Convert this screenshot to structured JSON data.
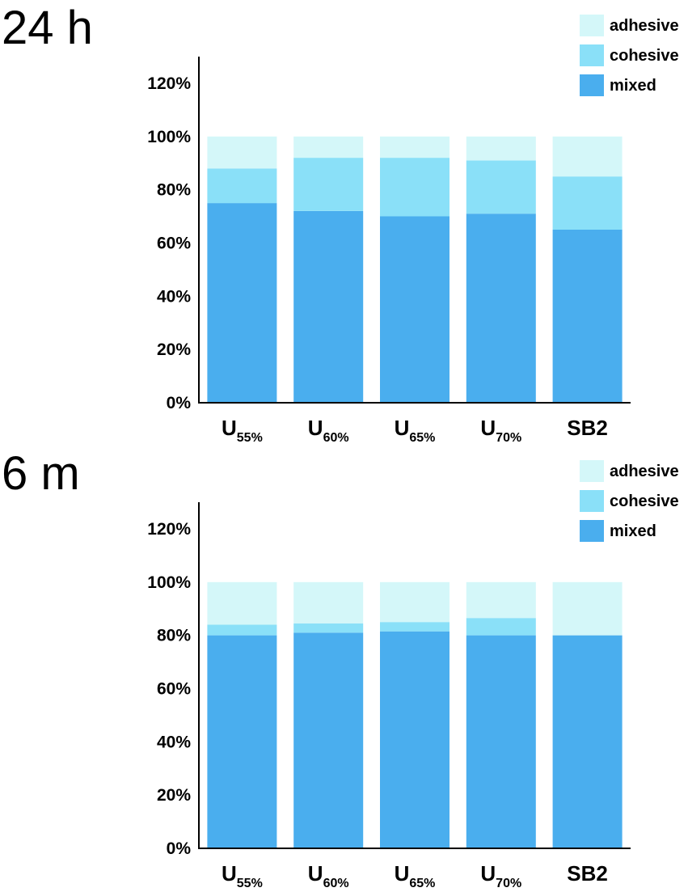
{
  "chart_data": [
    {
      "type": "bar",
      "stacked": true,
      "panel_label": "24 h",
      "title": "",
      "xlabel": "",
      "ylabel": "",
      "ylim": [
        0,
        130
      ],
      "yticks": [
        0,
        20,
        40,
        60,
        80,
        100,
        120
      ],
      "ytick_suffix": "%",
      "grid": false,
      "legend": "top-right",
      "categories": [
        {
          "main": "U",
          "sub": "55%"
        },
        {
          "main": "U",
          "sub": "60%"
        },
        {
          "main": "U",
          "sub": "65%"
        },
        {
          "main": "U",
          "sub": "70%"
        },
        {
          "main": "SB2",
          "sub": ""
        }
      ],
      "series": [
        {
          "name": "mixed",
          "color": "#4aaeee",
          "values": [
            75,
            72,
            70,
            71,
            65
          ]
        },
        {
          "name": "cohesive",
          "color": "#8ae0f8",
          "values": [
            13,
            20,
            22,
            20,
            20
          ]
        },
        {
          "name": "adhesive",
          "color": "#d4f7f9",
          "values": [
            12,
            8,
            8,
            9,
            15
          ]
        }
      ]
    },
    {
      "type": "bar",
      "stacked": true,
      "panel_label": "6 m",
      "title": "",
      "xlabel": "",
      "ylabel": "",
      "ylim": [
        0,
        130
      ],
      "yticks": [
        0,
        20,
        40,
        60,
        80,
        100,
        120
      ],
      "ytick_suffix": "%",
      "grid": false,
      "legend": "top-right",
      "categories": [
        {
          "main": "U",
          "sub": "55%"
        },
        {
          "main": "U",
          "sub": "60%"
        },
        {
          "main": "U",
          "sub": "65%"
        },
        {
          "main": "U",
          "sub": "70%"
        },
        {
          "main": "SB2",
          "sub": ""
        }
      ],
      "series": [
        {
          "name": "mixed",
          "color": "#4aaeee",
          "values": [
            80,
            81,
            81.5,
            80,
            80
          ]
        },
        {
          "name": "cohesive",
          "color": "#8ae0f8",
          "values": [
            4,
            3.5,
            3.5,
            6.5,
            0
          ]
        },
        {
          "name": "adhesive",
          "color": "#d4f7f9",
          "values": [
            16,
            15.5,
            15,
            13.5,
            20
          ]
        }
      ]
    }
  ]
}
